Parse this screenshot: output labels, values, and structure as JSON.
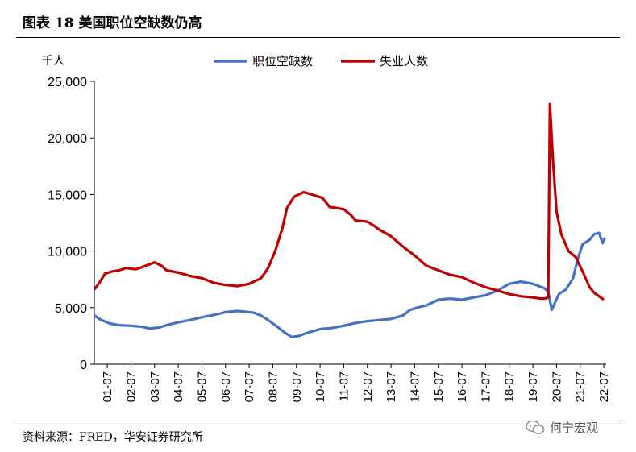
{
  "header": {
    "title": "图表 18 美国职位空缺数仍高"
  },
  "footer": {
    "source": "资料来源：FRED，华安证券研究所",
    "watermark": "何宁宏观",
    "watermark_icon": "wechat-icon"
  },
  "chart_data": {
    "type": "line",
    "title": "",
    "ylabel": "千人",
    "ylim": [
      0,
      25000
    ],
    "yticks": [
      0,
      5000,
      10000,
      15000,
      20000,
      25000
    ],
    "ytick_labels": [
      "0",
      "5,000",
      "10,000",
      "15,000",
      "20,000",
      "25,000"
    ],
    "xticks": [
      2001.5,
      2002.5,
      2003.5,
      2004.5,
      2005.5,
      2006.5,
      2007.5,
      2008.5,
      2009.5,
      2010.5,
      2011.5,
      2012.5,
      2013.5,
      2014.5,
      2015.5,
      2016.5,
      2017.5,
      2018.5,
      2019.5,
      2020.5,
      2021.5,
      2022.5
    ],
    "xtick_labels": [
      "01-07",
      "02-07",
      "03-07",
      "04-07",
      "05-07",
      "06-07",
      "07-07",
      "08-07",
      "09-07",
      "10-07",
      "11-07",
      "12-07",
      "13-07",
      "14-07",
      "15-07",
      "16-07",
      "17-07",
      "18-07",
      "19-07",
      "20-07",
      "21-07",
      "22-07"
    ],
    "legend_position": "top",
    "series": [
      {
        "name": "职位空缺数",
        "color": "#4472C4",
        "points": [
          [
            2000.95,
            4300
          ],
          [
            2001.2,
            3950
          ],
          [
            2001.6,
            3600
          ],
          [
            2002.0,
            3450
          ],
          [
            2002.5,
            3400
          ],
          [
            2003.0,
            3300
          ],
          [
            2003.3,
            3150
          ],
          [
            2003.7,
            3250
          ],
          [
            2004.0,
            3450
          ],
          [
            2004.5,
            3700
          ],
          [
            2005.0,
            3900
          ],
          [
            2005.5,
            4150
          ],
          [
            2006.0,
            4350
          ],
          [
            2006.5,
            4600
          ],
          [
            2007.0,
            4700
          ],
          [
            2007.3,
            4650
          ],
          [
            2007.7,
            4550
          ],
          [
            2008.0,
            4300
          ],
          [
            2008.3,
            3900
          ],
          [
            2008.7,
            3300
          ],
          [
            2009.0,
            2800
          ],
          [
            2009.3,
            2400
          ],
          [
            2009.6,
            2500
          ],
          [
            2010.0,
            2800
          ],
          [
            2010.5,
            3100
          ],
          [
            2011.0,
            3200
          ],
          [
            2011.5,
            3400
          ],
          [
            2012.0,
            3650
          ],
          [
            2012.5,
            3800
          ],
          [
            2013.0,
            3900
          ],
          [
            2013.5,
            4000
          ],
          [
            2014.0,
            4300
          ],
          [
            2014.3,
            4800
          ],
          [
            2014.6,
            5000
          ],
          [
            2015.0,
            5200
          ],
          [
            2015.5,
            5700
          ],
          [
            2016.0,
            5800
          ],
          [
            2016.5,
            5700
          ],
          [
            2017.0,
            5900
          ],
          [
            2017.5,
            6100
          ],
          [
            2018.0,
            6500
          ],
          [
            2018.5,
            7100
          ],
          [
            2019.0,
            7300
          ],
          [
            2019.5,
            7100
          ],
          [
            2020.0,
            6700
          ],
          [
            2020.15,
            6400
          ],
          [
            2020.3,
            4800
          ],
          [
            2020.6,
            6200
          ],
          [
            2020.9,
            6600
          ],
          [
            2021.2,
            7600
          ],
          [
            2021.4,
            9300
          ],
          [
            2021.6,
            10600
          ],
          [
            2021.9,
            11000
          ],
          [
            2022.1,
            11500
          ],
          [
            2022.3,
            11600
          ],
          [
            2022.45,
            10700
          ],
          [
            2022.55,
            11200
          ]
        ]
      },
      {
        "name": "失业人数",
        "color": "#C00000",
        "points": [
          [
            2000.95,
            6600
          ],
          [
            2001.2,
            7300
          ],
          [
            2001.4,
            8000
          ],
          [
            2001.7,
            8200
          ],
          [
            2002.0,
            8300
          ],
          [
            2002.3,
            8500
          ],
          [
            2002.7,
            8400
          ],
          [
            2003.0,
            8600
          ],
          [
            2003.5,
            9000
          ],
          [
            2003.8,
            8700
          ],
          [
            2004.0,
            8300
          ],
          [
            2004.5,
            8100
          ],
          [
            2005.0,
            7800
          ],
          [
            2005.5,
            7600
          ],
          [
            2006.0,
            7200
          ],
          [
            2006.5,
            7000
          ],
          [
            2007.0,
            6900
          ],
          [
            2007.5,
            7100
          ],
          [
            2008.0,
            7600
          ],
          [
            2008.3,
            8500
          ],
          [
            2008.6,
            10000
          ],
          [
            2008.9,
            12000
          ],
          [
            2009.1,
            13800
          ],
          [
            2009.4,
            14800
          ],
          [
            2009.8,
            15200
          ],
          [
            2010.0,
            15100
          ],
          [
            2010.3,
            14900
          ],
          [
            2010.6,
            14700
          ],
          [
            2010.9,
            13900
          ],
          [
            2011.2,
            13800
          ],
          [
            2011.5,
            13700
          ],
          [
            2011.8,
            13200
          ],
          [
            2012.0,
            12700
          ],
          [
            2012.5,
            12600
          ],
          [
            2012.8,
            12200
          ],
          [
            2013.0,
            11900
          ],
          [
            2013.5,
            11300
          ],
          [
            2014.0,
            10400
          ],
          [
            2014.5,
            9600
          ],
          [
            2015.0,
            8700
          ],
          [
            2015.5,
            8300
          ],
          [
            2016.0,
            7900
          ],
          [
            2016.5,
            7700
          ],
          [
            2017.0,
            7200
          ],
          [
            2017.5,
            6800
          ],
          [
            2018.0,
            6500
          ],
          [
            2018.5,
            6200
          ],
          [
            2019.0,
            6000
          ],
          [
            2019.5,
            5900
          ],
          [
            2019.8,
            5800
          ],
          [
            2020.0,
            5800
          ],
          [
            2020.15,
            5900
          ],
          [
            2020.22,
            23000
          ],
          [
            2020.35,
            18000
          ],
          [
            2020.5,
            13500
          ],
          [
            2020.7,
            11500
          ],
          [
            2021.0,
            10000
          ],
          [
            2021.3,
            9500
          ],
          [
            2021.6,
            8200
          ],
          [
            2021.9,
            6800
          ],
          [
            2022.1,
            6300
          ],
          [
            2022.3,
            6000
          ],
          [
            2022.5,
            5700
          ]
        ]
      }
    ]
  }
}
